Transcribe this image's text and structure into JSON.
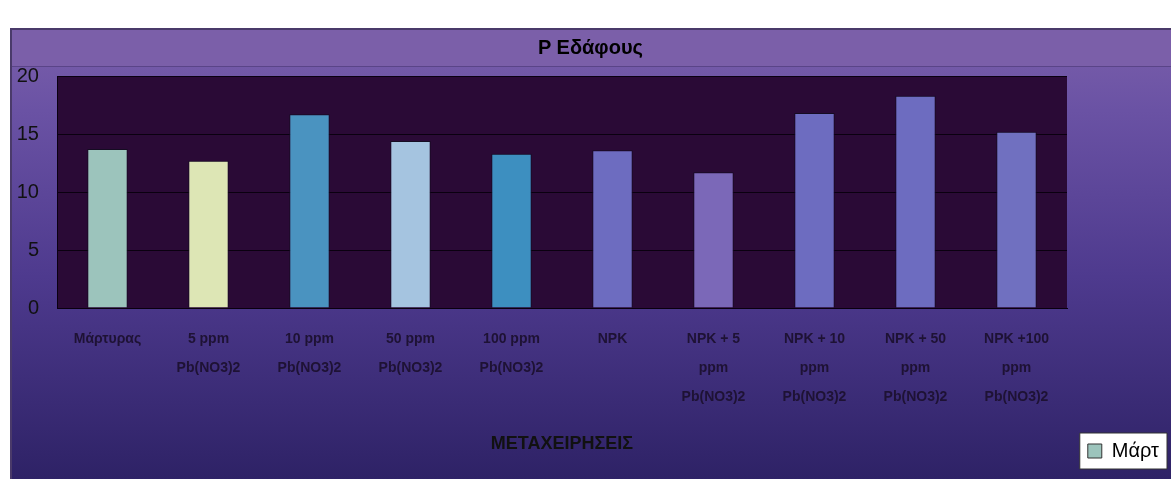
{
  "chart_data": {
    "type": "bar",
    "title": "P Εδάφους",
    "xlabel": "ΜΕΤΑΧΕΙΡΗΣΕΙΣ",
    "categories": [
      "Μάρτυρας",
      "5 ppm Pb(NO3)2",
      "10 ppm Pb(NO3)2",
      "50 ppm Pb(NO3)2",
      "100 ppm Pb(NO3)2",
      "NPK",
      "NPK + 5 ppm Pb(NO3)2",
      "NPK + 10 ppm Pb(NO3)2",
      "NPK + 50 ppm Pb(NO3)2",
      "NPK +100 ppm Pb(NO3)2"
    ],
    "series": [
      {
        "name": "Μάρτ",
        "colors": [
          "#9cc4bc",
          "#dde6b5",
          "#4a93c0",
          "#a5c4e0",
          "#3d8fc0",
          "#6d6cc0",
          "#7b68b8",
          "#6d6cc0",
          "#6d6cc0",
          "#7070c0"
        ],
        "values": [
          13.7,
          12.7,
          16.7,
          14.4,
          13.3,
          13.6,
          11.7,
          16.8,
          18.3,
          15.2
        ]
      }
    ],
    "ylim": [
      0,
      20
    ],
    "yticks": [
      0,
      5,
      10,
      15,
      20
    ],
    "grid": "y",
    "legend": "bottom right"
  }
}
